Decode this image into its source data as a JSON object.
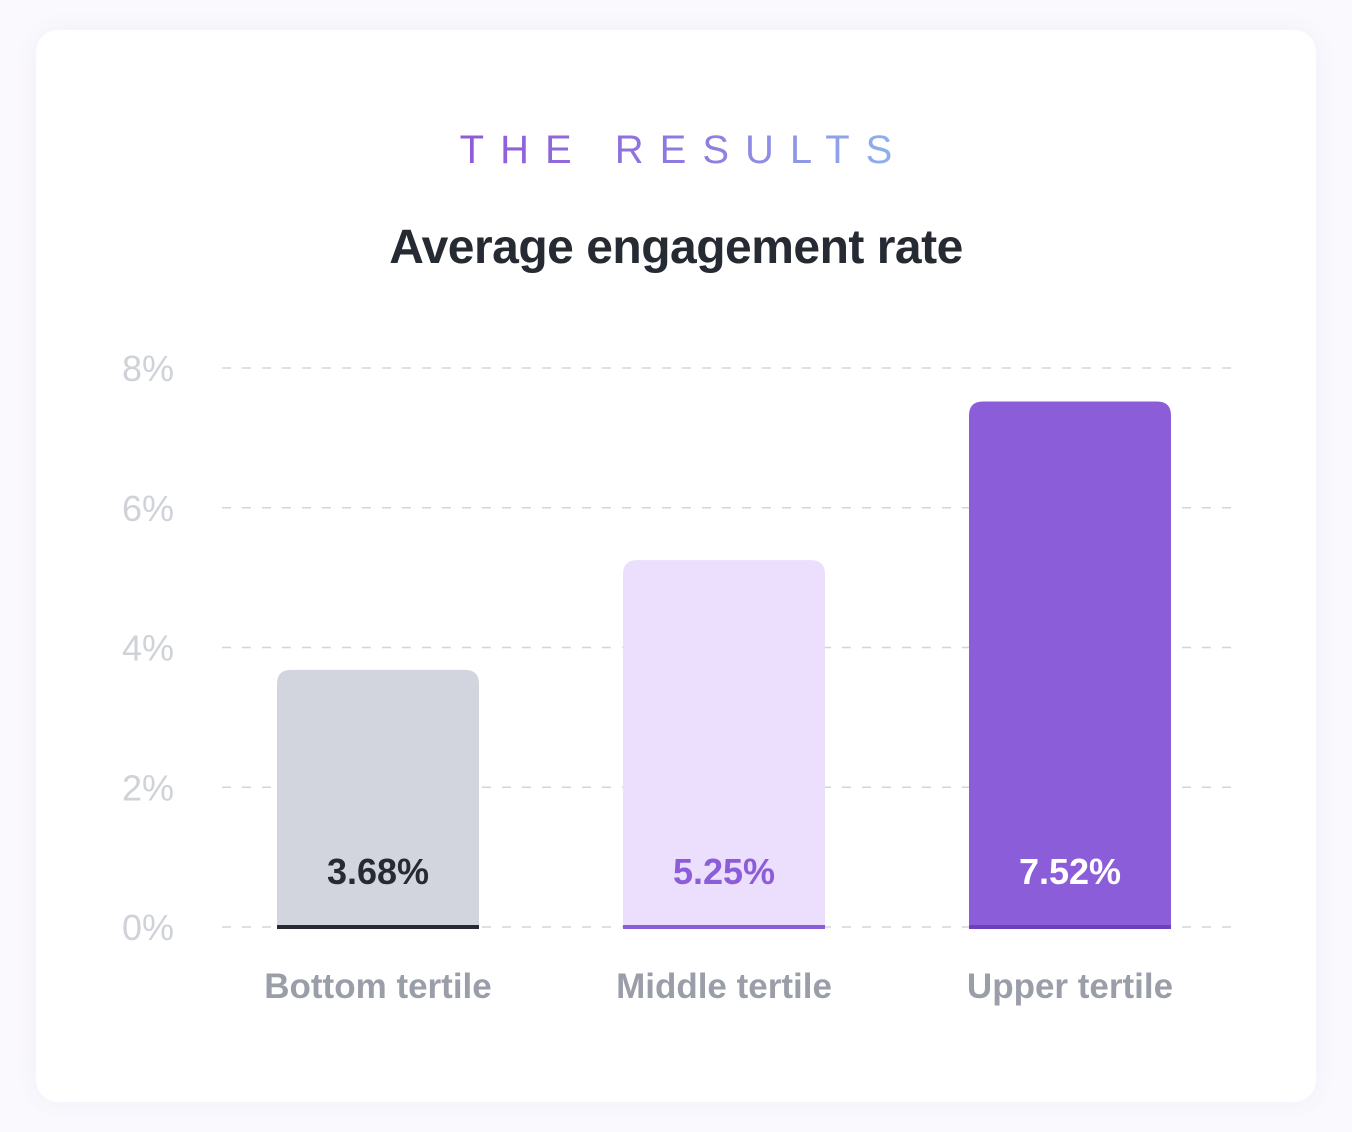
{
  "eyebrow": "THE RESULTS",
  "colors": {
    "grid": "#d3d5dc",
    "tick": "#cfd2d8",
    "category": "#9a9ea8"
  },
  "chart_data": {
    "type": "bar",
    "title": "Average engagement rate",
    "subtitle": "THE RESULTS",
    "xlabel": "",
    "ylabel": "",
    "ylim": [
      0,
      8
    ],
    "yticks": [
      0,
      2,
      4,
      6,
      8
    ],
    "ytick_labels": [
      "0%",
      "2%",
      "4%",
      "6%",
      "8%"
    ],
    "grid": true,
    "categories": [
      "Bottom tertile",
      "Middle tertile",
      "Upper tertile"
    ],
    "values": [
      3.68,
      5.25,
      7.52
    ],
    "value_labels": [
      "3.68%",
      "5.25%",
      "7.52%"
    ],
    "bar_colors": [
      "#d2d5dd",
      "#ecdefd",
      "#8c5dd9"
    ],
    "base_colors": [
      "#262a33",
      "#8c5dd9",
      "#6b3fc0"
    ],
    "label_colors": [
      "#262a33",
      "#8c5dd9",
      "#ffffff"
    ]
  }
}
